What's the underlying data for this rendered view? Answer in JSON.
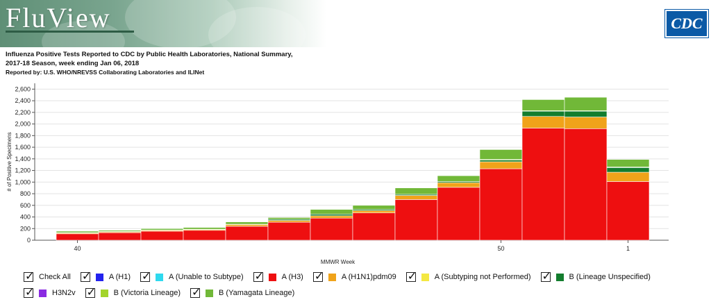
{
  "header": {
    "logo_text": "FluView",
    "cdc_logo_text": "CDC",
    "title_line1": "Influenza Positive Tests Reported to CDC by Public Health Laboratories, National Summary,",
    "title_line2": "2017-18 Season, week ending Jan 06, 2018",
    "reported_by": "Reported by: U.S. WHO/NREVSS Collaborating Laboratories and ILINet"
  },
  "chart_data": {
    "type": "bar",
    "stacked": true,
    "xlabel": "MMWR Week",
    "ylabel": "# of Positive Specimens",
    "ylim": [
      0,
      2700
    ],
    "yticks": [
      0,
      200,
      400,
      600,
      800,
      1000,
      1200,
      1400,
      1600,
      1800,
      2000,
      2200,
      2400,
      2600
    ],
    "ytick_labels": [
      "0",
      "200",
      "400",
      "600",
      "800",
      "1,000",
      "1,200",
      "1,400",
      "1,600",
      "1,800",
      "2,000",
      "2,200",
      "2,400",
      "2,600"
    ],
    "categories": [
      40,
      41,
      42,
      43,
      44,
      45,
      46,
      47,
      48,
      49,
      50,
      51,
      52,
      1
    ],
    "xtick_labels": {
      "40": "40",
      "50": "50",
      "1": "1"
    },
    "grid": true,
    "series": [
      {
        "name": "A (H3)",
        "color": "#ee0f10",
        "values": [
          110,
          130,
          155,
          170,
          240,
          310,
          380,
          470,
          700,
          910,
          1230,
          1930,
          1920,
          1010
        ]
      },
      {
        "name": "A (H1N1)pdm09",
        "color": "#f0a31a",
        "values": [
          15,
          15,
          15,
          15,
          30,
          30,
          40,
          40,
          70,
          80,
          120,
          200,
          200,
          160
        ]
      },
      {
        "name": "B (Lineage Unspecified)",
        "color": "#137d2e",
        "values": [
          5,
          5,
          5,
          5,
          5,
          20,
          30,
          20,
          20,
          20,
          30,
          90,
          100,
          80
        ]
      },
      {
        "name": "B (Victoria Lineage)",
        "color": "#a3d42b",
        "values": [
          0,
          0,
          0,
          0,
          0,
          0,
          0,
          0,
          0,
          0,
          10,
          10,
          10,
          10
        ]
      },
      {
        "name": "B (Yamagata Lineage)",
        "color": "#71b838",
        "values": [
          25,
          20,
          25,
          30,
          40,
          30,
          80,
          70,
          110,
          100,
          170,
          190,
          230,
          130
        ]
      }
    ]
  },
  "legend": {
    "check_all": "Check All",
    "items": [
      {
        "label": "A (H1)",
        "color": "#2323ee"
      },
      {
        "label": "A (Unable to Subtype)",
        "color": "#2fd9ee"
      },
      {
        "label": "A (H3)",
        "color": "#ee0f10"
      },
      {
        "label": "A (H1N1)pdm09",
        "color": "#f0a31a"
      },
      {
        "label": "A (Subtyping not Performed)",
        "color": "#f4e842"
      },
      {
        "label": "B (Lineage Unspecified)",
        "color": "#137d2e"
      },
      {
        "label": "H3N2v",
        "color": "#8a2be2"
      },
      {
        "label": "B (Victoria Lineage)",
        "color": "#a3d42b"
      },
      {
        "label": "B (Yamagata Lineage)",
        "color": "#71b838"
      }
    ]
  }
}
